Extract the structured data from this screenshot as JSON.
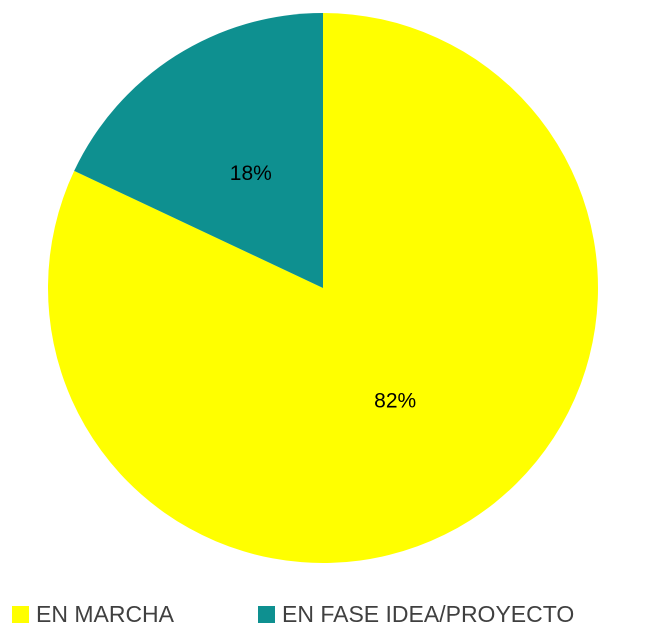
{
  "chart_data": {
    "type": "pie",
    "categories": [
      "EN MARCHA",
      "EN FASE IDEA/PROYECTO"
    ],
    "values": [
      82,
      18
    ],
    "value_labels": [
      "82%",
      "18%"
    ],
    "colors": [
      "#ffff00",
      "#0e9090"
    ]
  }
}
